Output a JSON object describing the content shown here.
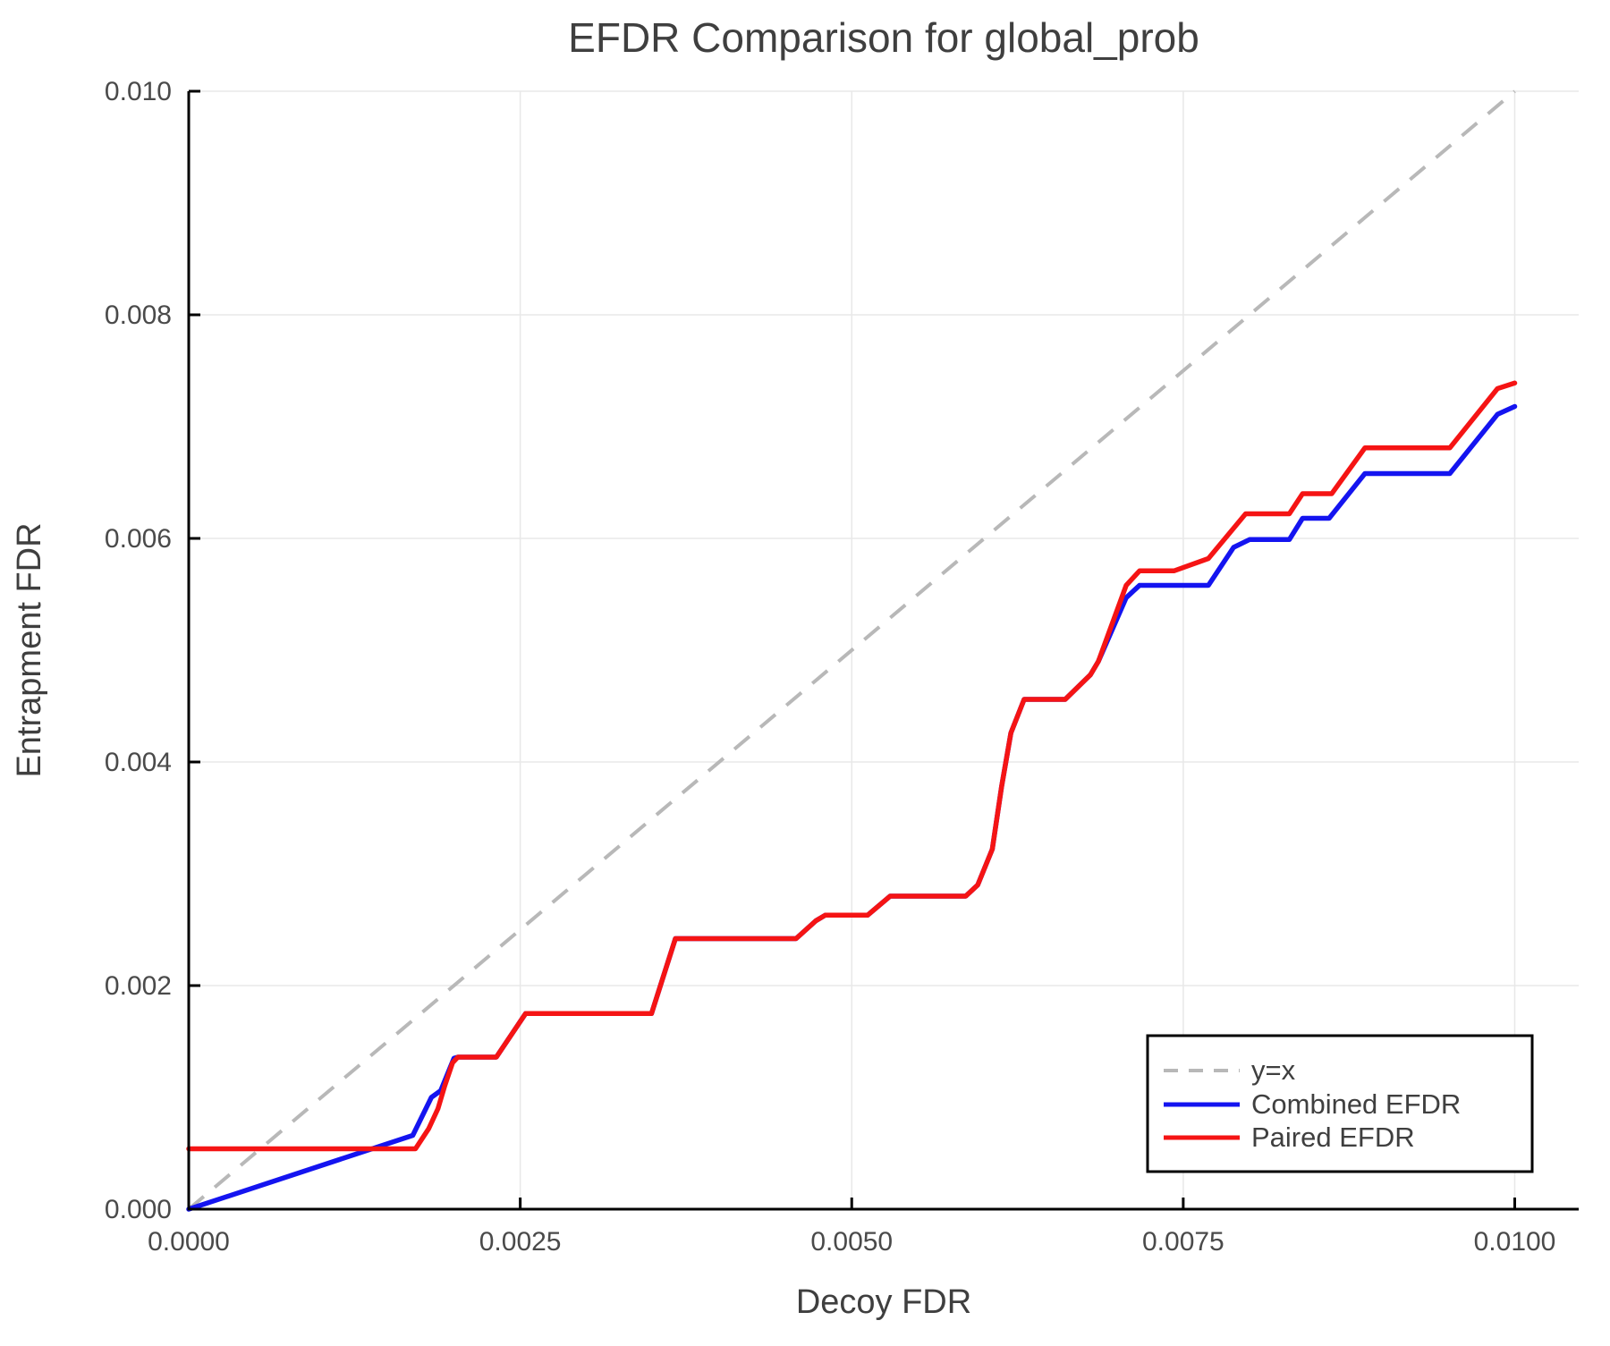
{
  "chart_data": {
    "type": "line",
    "title": "EFDR Comparison for global_prob",
    "xlabel": "Decoy FDR",
    "ylabel": "Entrapment FDR",
    "xlim": [
      0.0,
      0.0105
    ],
    "ylim": [
      0.0,
      0.01
    ],
    "x_ticks": [
      0.0,
      0.0025,
      0.005,
      0.0075,
      0.01
    ],
    "x_tick_labels": [
      "0.0000",
      "0.0025",
      "0.0050",
      "0.0075",
      "0.0100"
    ],
    "y_ticks": [
      0.0,
      0.002,
      0.004,
      0.006,
      0.008,
      0.01
    ],
    "y_tick_labels": [
      "0.000",
      "0.002",
      "0.004",
      "0.006",
      "0.008",
      "0.010"
    ],
    "grid": true,
    "legend_position": "bottom-right",
    "reference_line": {
      "name": "y=x",
      "style": "dashed",
      "color": "#b8b8b8",
      "from": [
        0.0,
        0.0
      ],
      "to": [
        0.01,
        0.01
      ]
    },
    "series": [
      {
        "name": "Combined EFDR",
        "color": "#1414f0",
        "x": [
          0.0,
          0.00169,
          0.00183,
          0.0019,
          0.002,
          0.00203,
          0.00232,
          0.00254,
          0.00349,
          0.00367,
          0.00458,
          0.00473,
          0.0048,
          0.00512,
          0.00529,
          0.00586,
          0.00595,
          0.00606,
          0.00613,
          0.0062,
          0.0063,
          0.00661,
          0.0068,
          0.00686,
          0.00707,
          0.00717,
          0.00769,
          0.00788,
          0.008,
          0.0083,
          0.0084,
          0.0086,
          0.00887,
          0.00951,
          0.00987,
          0.01
        ],
        "y": [
          0.0,
          0.00066,
          0.001,
          0.00106,
          0.00135,
          0.00136,
          0.00136,
          0.00175,
          0.00175,
          0.00242,
          0.00242,
          0.00258,
          0.00263,
          0.00263,
          0.0028,
          0.0028,
          0.0029,
          0.00322,
          0.00378,
          0.00426,
          0.00456,
          0.00456,
          0.00478,
          0.0049,
          0.00547,
          0.00558,
          0.00558,
          0.00592,
          0.00599,
          0.00599,
          0.00618,
          0.00618,
          0.00658,
          0.00658,
          0.00711,
          0.00718
        ]
      },
      {
        "name": "Paired EFDR",
        "color": "#f51414",
        "x": [
          0.0,
          0.00171,
          0.00181,
          0.00188,
          0.00193,
          0.00199,
          0.00203,
          0.00232,
          0.00254,
          0.00349,
          0.00367,
          0.00458,
          0.00473,
          0.0048,
          0.00512,
          0.00529,
          0.00586,
          0.00595,
          0.00606,
          0.00613,
          0.0062,
          0.0063,
          0.00661,
          0.0068,
          0.00686,
          0.00707,
          0.00717,
          0.00743,
          0.00769,
          0.00797,
          0.0083,
          0.0084,
          0.00862,
          0.00887,
          0.00951,
          0.00987,
          0.01
        ],
        "y": [
          0.00054,
          0.00054,
          0.00072,
          0.0009,
          0.0011,
          0.00131,
          0.00136,
          0.00136,
          0.00175,
          0.00175,
          0.00242,
          0.00242,
          0.00258,
          0.00263,
          0.00263,
          0.0028,
          0.0028,
          0.0029,
          0.00322,
          0.00378,
          0.00426,
          0.00456,
          0.00456,
          0.00478,
          0.0049,
          0.00558,
          0.00571,
          0.00571,
          0.00582,
          0.00622,
          0.00622,
          0.0064,
          0.0064,
          0.00681,
          0.00681,
          0.00734,
          0.00739
        ]
      }
    ],
    "style": {
      "grid_color": "#e8e8e8",
      "spine_color": "#000000",
      "text_color": "#3f3f3f",
      "tick_label_color": "#4a4a4a",
      "background": "#ffffff",
      "legend_border_color": "#000000",
      "legend_background": "#ffffff"
    }
  },
  "legend": {
    "items": [
      {
        "label": "y=x"
      },
      {
        "label": "Combined EFDR"
      },
      {
        "label": "Paired EFDR"
      }
    ]
  }
}
